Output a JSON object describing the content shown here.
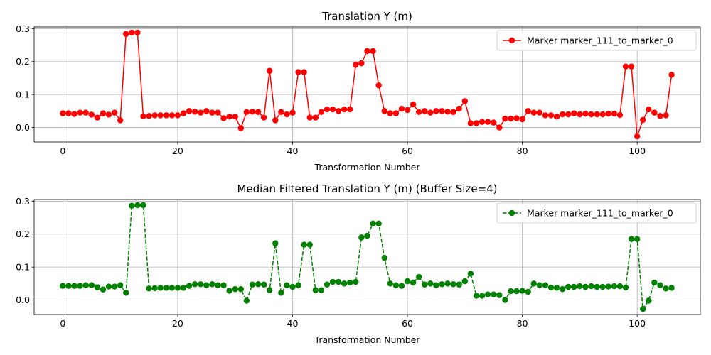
{
  "chart_data": [
    {
      "type": "line",
      "title": "Translation Y (m)",
      "xlabel": "Transformation Number",
      "ylabel": "",
      "xlim": [
        -5,
        111
      ],
      "ylim": [
        -0.044,
        0.305
      ],
      "xticks": [
        0,
        20,
        40,
        60,
        80,
        100
      ],
      "xtick_labels": [
        "0",
        "20",
        "40",
        "60",
        "80",
        "100"
      ],
      "yticks": [
        0.0,
        0.1,
        0.2,
        0.3
      ],
      "ytick_labels": [
        "0.0",
        "0.1",
        "0.2",
        "0.3"
      ],
      "grid": true,
      "legend_position": "top-right",
      "series": [
        {
          "name": "Marker marker_111_to_marker_0",
          "color": "#ff0000",
          "line_style": "solid",
          "marker": "circle",
          "x": [
            0,
            1,
            2,
            3,
            4,
            5,
            6,
            7,
            8,
            9,
            10,
            11,
            12,
            13,
            14,
            15,
            16,
            17,
            18,
            19,
            20,
            21,
            22,
            23,
            24,
            25,
            26,
            27,
            28,
            29,
            30,
            31,
            32,
            33,
            34,
            35,
            36,
            37,
            38,
            39,
            40,
            41,
            42,
            43,
            44,
            45,
            46,
            47,
            48,
            49,
            50,
            51,
            52,
            53,
            54,
            55,
            56,
            57,
            58,
            59,
            60,
            61,
            62,
            63,
            64,
            65,
            66,
            67,
            68,
            69,
            70,
            71,
            72,
            73,
            74,
            75,
            76,
            77,
            78,
            79,
            80,
            81,
            82,
            83,
            84,
            85,
            86,
            87,
            88,
            89,
            90,
            91,
            92,
            93,
            94,
            95,
            96,
            97,
            98,
            99,
            100,
            101,
            102,
            103,
            104,
            105,
            106
          ],
          "values": [
            0.043,
            0.043,
            0.041,
            0.045,
            0.045,
            0.039,
            0.03,
            0.043,
            0.039,
            0.045,
            0.022,
            0.284,
            0.288,
            0.288,
            0.034,
            0.035,
            0.037,
            0.037,
            0.037,
            0.037,
            0.037,
            0.043,
            0.05,
            0.048,
            0.045,
            0.05,
            0.045,
            0.045,
            0.028,
            0.033,
            0.033,
            -0.002,
            0.047,
            0.048,
            0.047,
            0.03,
            0.172,
            0.022,
            0.047,
            0.04,
            0.045,
            0.168,
            0.168,
            0.03,
            0.03,
            0.047,
            0.055,
            0.055,
            0.05,
            0.055,
            0.055,
            0.19,
            0.195,
            0.232,
            0.232,
            0.128,
            0.05,
            0.043,
            0.043,
            0.057,
            0.053,
            0.07,
            0.047,
            0.05,
            0.045,
            0.05,
            0.05,
            0.048,
            0.047,
            0.057,
            0.08,
            0.013,
            0.013,
            0.017,
            0.017,
            0.015,
            0.0,
            0.027,
            0.027,
            0.028,
            0.025,
            0.05,
            0.045,
            0.045,
            0.037,
            0.037,
            0.033,
            0.04,
            0.04,
            0.043,
            0.04,
            0.042,
            0.04,
            0.04,
            0.04,
            0.042,
            0.042,
            0.038,
            0.185,
            0.185,
            -0.027,
            0.023,
            0.055,
            0.045,
            0.035,
            0.037,
            0.16
          ]
        }
      ]
    },
    {
      "type": "line",
      "title": "Median Filtered Translation Y (m) (Buffer Size=4)",
      "xlabel": "Transformation Number",
      "ylabel": "",
      "xlim": [
        -5,
        111
      ],
      "ylim": [
        -0.044,
        0.305
      ],
      "xticks": [
        0,
        20,
        40,
        60,
        80,
        100
      ],
      "xtick_labels": [
        "0",
        "20",
        "40",
        "60",
        "80",
        "100"
      ],
      "yticks": [
        0.0,
        0.1,
        0.2,
        0.3
      ],
      "ytick_labels": [
        "0.0",
        "0.1",
        "0.2",
        "0.3"
      ],
      "grid": true,
      "legend_position": "top-right",
      "series": [
        {
          "name": "Marker marker_111_to_marker_0",
          "color": "#008000",
          "line_style": "dashed",
          "marker": "circle",
          "x": [
            0,
            1,
            2,
            3,
            4,
            5,
            6,
            7,
            8,
            9,
            10,
            11,
            12,
            13,
            14,
            15,
            16,
            17,
            18,
            19,
            20,
            21,
            22,
            23,
            24,
            25,
            26,
            27,
            28,
            29,
            30,
            31,
            32,
            33,
            34,
            35,
            36,
            37,
            38,
            39,
            40,
            41,
            42,
            43,
            44,
            45,
            46,
            47,
            48,
            49,
            50,
            51,
            52,
            53,
            54,
            55,
            56,
            57,
            58,
            59,
            60,
            61,
            62,
            63,
            64,
            65,
            66,
            67,
            68,
            69,
            70,
            71,
            72,
            73,
            74,
            75,
            76,
            77,
            78,
            79,
            80,
            81,
            82,
            83,
            84,
            85,
            86,
            87,
            88,
            89,
            90,
            91,
            92,
            93,
            94,
            95,
            96,
            97,
            98,
            99,
            100,
            101,
            102,
            103,
            104,
            105,
            106
          ],
          "values": [
            0.043,
            0.043,
            0.043,
            0.043,
            0.045,
            0.045,
            0.039,
            0.032,
            0.041,
            0.041,
            0.045,
            0.022,
            0.286,
            0.288,
            0.288,
            0.035,
            0.036,
            0.037,
            0.037,
            0.037,
            0.037,
            0.037,
            0.043,
            0.048,
            0.048,
            0.045,
            0.048,
            0.045,
            0.045,
            0.028,
            0.033,
            0.033,
            -0.002,
            0.047,
            0.048,
            0.047,
            0.03,
            0.172,
            0.022,
            0.045,
            0.04,
            0.045,
            0.168,
            0.168,
            0.03,
            0.03,
            0.047,
            0.055,
            0.055,
            0.05,
            0.053,
            0.055,
            0.19,
            0.195,
            0.232,
            0.232,
            0.128,
            0.05,
            0.045,
            0.043,
            0.057,
            0.053,
            0.07,
            0.047,
            0.05,
            0.045,
            0.048,
            0.05,
            0.048,
            0.047,
            0.057,
            0.08,
            0.013,
            0.013,
            0.017,
            0.017,
            0.015,
            0.0,
            0.027,
            0.027,
            0.028,
            0.025,
            0.05,
            0.045,
            0.045,
            0.038,
            0.037,
            0.033,
            0.04,
            0.04,
            0.042,
            0.04,
            0.042,
            0.04,
            0.04,
            0.041,
            0.042,
            0.042,
            0.038,
            0.185,
            0.185,
            -0.027,
            -0.002,
            0.053,
            0.045,
            0.035,
            0.037
          ]
        }
      ]
    }
  ]
}
